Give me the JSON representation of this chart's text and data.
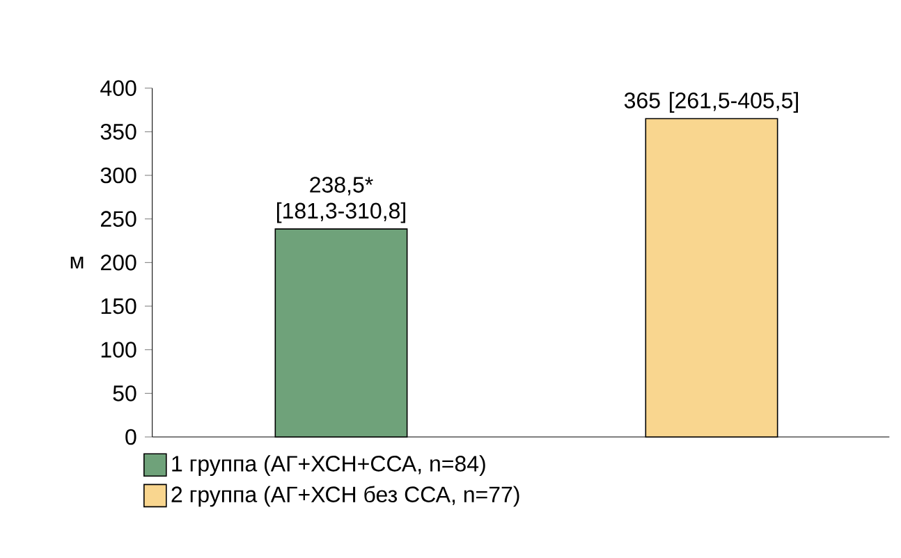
{
  "chart_data": {
    "type": "bar",
    "ylabel": "м",
    "categories": [
      null,
      null
    ],
    "ylim": [
      0,
      400
    ],
    "yticks": [
      0,
      50,
      100,
      150,
      200,
      250,
      300,
      350,
      400
    ],
    "legend": "bottom left",
    "series": [
      {
        "name": "1 группа (АГ+ХСН+ССА, n=84)",
        "color": "#6fa27a",
        "values": [
          238.5,
          null
        ],
        "value_labels": [
          "238,5* [181,3-310,8]",
          null
        ]
      },
      {
        "name": "2 группа (АГ+ХСН без ССА, n=77)",
        "color": "#f9d68f",
        "values": [
          null,
          365
        ],
        "value_labels": [
          null,
          "365 [261,5-405,5]"
        ]
      }
    ]
  }
}
